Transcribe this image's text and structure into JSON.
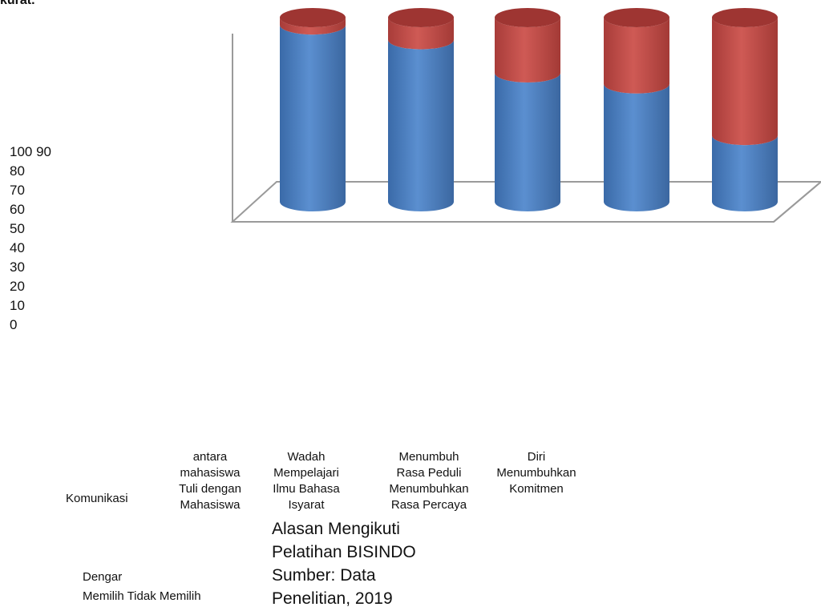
{
  "page_fragment": "kurat.",
  "chart_data": {
    "type": "bar",
    "style": "3d-cylinder-stacked",
    "title": "",
    "xlabel": "",
    "ylabel": "",
    "ylim": [
      0,
      100
    ],
    "y_tick_labels": [
      "100 90",
      "80",
      "70",
      "60",
      "50",
      "40",
      "30",
      "20",
      "10",
      "0"
    ],
    "categories": [
      [
        "Komunikasi"
      ],
      [
        "antara",
        "mahasiswa",
        "Tuli  dengan",
        "Mahasiswa"
      ],
      [
        "Wadah",
        "Mempelajari",
        "Ilmu Bahasa",
        "Isyarat"
      ],
      [
        "Menumbuh",
        "Rasa Peduli",
        "Menumbuhkan",
        "Rasa Percaya"
      ],
      [
        "Diri",
        "Menumbuhkan",
        "Komitmen"
      ]
    ],
    "series": [
      {
        "name": "Memilih",
        "color": "#4f81bd",
        "values": [
          96,
          88,
          70,
          64,
          36
        ]
      },
      {
        "name": "Tidak Memilih",
        "color": "#c0504d",
        "values": [
          4,
          12,
          30,
          36,
          64
        ]
      }
    ],
    "legend": {
      "entries": [
        "Dengar",
        "Memilih Tidak Memilih"
      ],
      "placement": "bottom-left"
    },
    "grid": false
  },
  "caption": {
    "lines": [
      "Alasan Mengikuti",
      "Pelatihan BISINDO",
      "Sumber: Data",
      "Penelitian, 2019"
    ]
  }
}
